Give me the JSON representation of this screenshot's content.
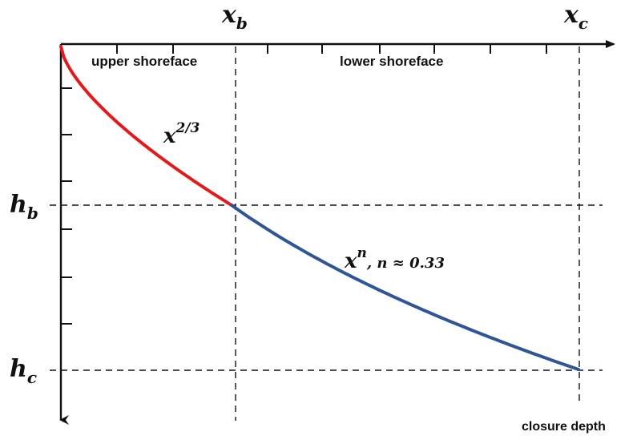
{
  "labels": {
    "xb_var": "x",
    "xb_sub": "b",
    "xc_var": "x",
    "xc_sub": "c",
    "hb_var": "h",
    "hb_sub": "b",
    "hc_var": "h",
    "hc_sub": "c",
    "upper_region": "upper shoreface",
    "lower_region": "lower shoreface",
    "upper_curve_base": "x",
    "upper_curve_exp": "2/3",
    "lower_curve_base": "x",
    "lower_curve_exp": "n",
    "lower_curve_note": ",  n ≈ 0.33",
    "closure": "closure depth"
  },
  "colors": {
    "upper_curve": "#e31a1c",
    "lower_curve": "#2f5597",
    "axes": "#111111"
  },
  "profile": {
    "upper_exponent": 0.6667,
    "lower_exponent": 0.33
  }
}
